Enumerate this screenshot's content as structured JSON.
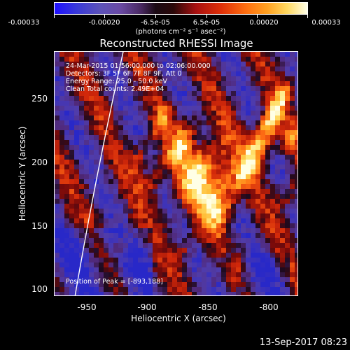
{
  "colorbar": {
    "tick_labels": [
      "-0.00033",
      "-0.00020",
      "-6.5e-05",
      "6.5e-05",
      "0.00020",
      "0.00033"
    ],
    "unit_label": "(photons cm⁻² s⁻¹ asec⁻²)"
  },
  "title": "Reconstructed RHESSI Image",
  "info": {
    "time_range": "24-Mar-2015 01:56:00.000 to 02:06:00.000",
    "detectors": "Detectors: 3F 5F 6F 7F 8F 9F, Att 0",
    "energy": "Energy Range: 25.0 - 50.0 keV",
    "clean": "Clean     Total counts: 2.49E+04",
    "peak": "Position of Peak = [-893,188]"
  },
  "axes": {
    "xlabel": "Heliocentric X (arcsec)",
    "ylabel": "Heliocentric Y (arcsec)",
    "xticks": [
      "-950",
      "-900",
      "-850",
      "-800"
    ],
    "yticks": [
      "250",
      "200",
      "150",
      "100"
    ],
    "xlim": [
      -975,
      -775
    ],
    "ylim": [
      95,
      295
    ]
  },
  "footer": "13-Sep-2017 08:23",
  "colors": {
    "background": "#000000",
    "limb": "#ffffff"
  }
}
